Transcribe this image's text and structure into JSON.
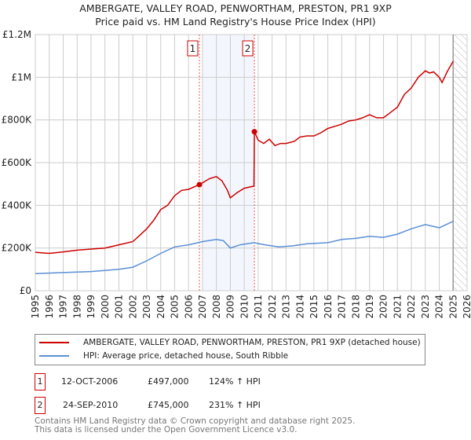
{
  "chart_data": {
    "type": "line",
    "title": "AMBERGATE, VALLEY ROAD, PENWORTHAM, PRESTON, PR1 9XP",
    "subtitle": "Price paid vs. HM Land Registry's House Price Index (HPI)",
    "xlim": [
      1995,
      2026
    ],
    "ylim": [
      0,
      1200000
    ],
    "x_ticks": [
      "1995",
      "1996",
      "1997",
      "1998",
      "1999",
      "2000",
      "2001",
      "2002",
      "2003",
      "2004",
      "2005",
      "2006",
      "2007",
      "2008",
      "2009",
      "2010",
      "2011",
      "2012",
      "2013",
      "2014",
      "2015",
      "2016",
      "2017",
      "2018",
      "2019",
      "2020",
      "2021",
      "2022",
      "2023",
      "2024",
      "2025",
      "2026"
    ],
    "y_ticks": [
      {
        "v": 0,
        "label": "£0"
      },
      {
        "v": 200000,
        "label": "£200K"
      },
      {
        "v": 400000,
        "label": "£400K"
      },
      {
        "v": 600000,
        "label": "£600K"
      },
      {
        "v": 800000,
        "label": "£800K"
      },
      {
        "v": 1000000,
        "label": "£1M"
      },
      {
        "v": 1200000,
        "label": "£1.2M"
      }
    ],
    "grid": true,
    "shaded_period": [
      2007.0,
      2010.73
    ],
    "future_hatch_from": 2025.0,
    "series": [
      {
        "name": "AMBERGATE, VALLEY ROAD, PENWORTHAM, PRESTON, PR1 9XP (detached house)",
        "color": "#cc0000",
        "x": [
          1995,
          1996,
          1997,
          1998,
          1999,
          2000,
          2001,
          2002,
          2002.5,
          2003,
          2003.5,
          2004,
          2004.5,
          2005,
          2005.5,
          2006,
          2006.78,
          2007.5,
          2008.0,
          2008.4,
          2008.8,
          2009.0,
          2009.5,
          2010.0,
          2010.7,
          2010.73,
          2011.0,
          2011.4,
          2011.8,
          2012.2,
          2012.6,
          2013,
          2013.6,
          2014,
          2014.5,
          2015,
          2015.5,
          2016,
          2016.5,
          2017,
          2017.5,
          2018,
          2018.5,
          2019,
          2019.5,
          2020,
          2020.5,
          2021,
          2021.5,
          2022,
          2022.5,
          2023,
          2023.3,
          2023.6,
          2024,
          2024.2,
          2024.6,
          2025
        ],
        "y": [
          180000,
          175000,
          182000,
          190000,
          195000,
          200000,
          215000,
          230000,
          260000,
          290000,
          330000,
          380000,
          400000,
          445000,
          470000,
          475000,
          497000,
          525000,
          535000,
          515000,
          470000,
          435000,
          460000,
          480000,
          490000,
          745000,
          705000,
          690000,
          710000,
          680000,
          690000,
          690000,
          700000,
          720000,
          725000,
          725000,
          740000,
          760000,
          770000,
          780000,
          795000,
          800000,
          810000,
          825000,
          810000,
          810000,
          835000,
          860000,
          920000,
          950000,
          1000000,
          1030000,
          1020000,
          1025000,
          1000000,
          975000,
          1030000,
          1075000
        ]
      },
      {
        "name": "HPI: Average price, detached house, South Ribble",
        "color": "#5b8fd4",
        "x": [
          1995,
          1997,
          1999,
          2001,
          2002,
          2003,
          2004,
          2005,
          2006,
          2007,
          2008,
          2008.5,
          2009,
          2009.7,
          2010.7,
          2011.5,
          2012.5,
          2013.5,
          2014.5,
          2016,
          2017,
          2018,
          2019,
          2020,
          2021,
          2022,
          2023,
          2024,
          2025
        ],
        "y": [
          80000,
          85000,
          90000,
          100000,
          110000,
          140000,
          175000,
          205000,
          215000,
          230000,
          240000,
          235000,
          200000,
          215000,
          225000,
          215000,
          205000,
          210000,
          220000,
          225000,
          240000,
          245000,
          255000,
          250000,
          265000,
          290000,
          310000,
          295000,
          325000
        ]
      }
    ],
    "markers": [
      {
        "label": "1",
        "x": 2006.78,
        "y": 497000
      },
      {
        "label": "2",
        "x": 2010.73,
        "y": 745000
      }
    ]
  },
  "legend": {
    "red": "AMBERGATE, VALLEY ROAD, PENWORTHAM, PRESTON, PR1 9XP (detached house)",
    "blue": "HPI: Average price, detached house, South Ribble"
  },
  "sales": [
    {
      "num": "1",
      "date": "12-OCT-2006",
      "price": "£497,000",
      "hpi": "124% ↑ HPI"
    },
    {
      "num": "2",
      "date": "24-SEP-2010",
      "price": "£745,000",
      "hpi": "231% ↑ HPI"
    }
  ],
  "footer": {
    "line1": "Contains HM Land Registry data © Crown copyright and database right 2025.",
    "line2": "This data is licensed under the Open Government Licence v3.0."
  }
}
